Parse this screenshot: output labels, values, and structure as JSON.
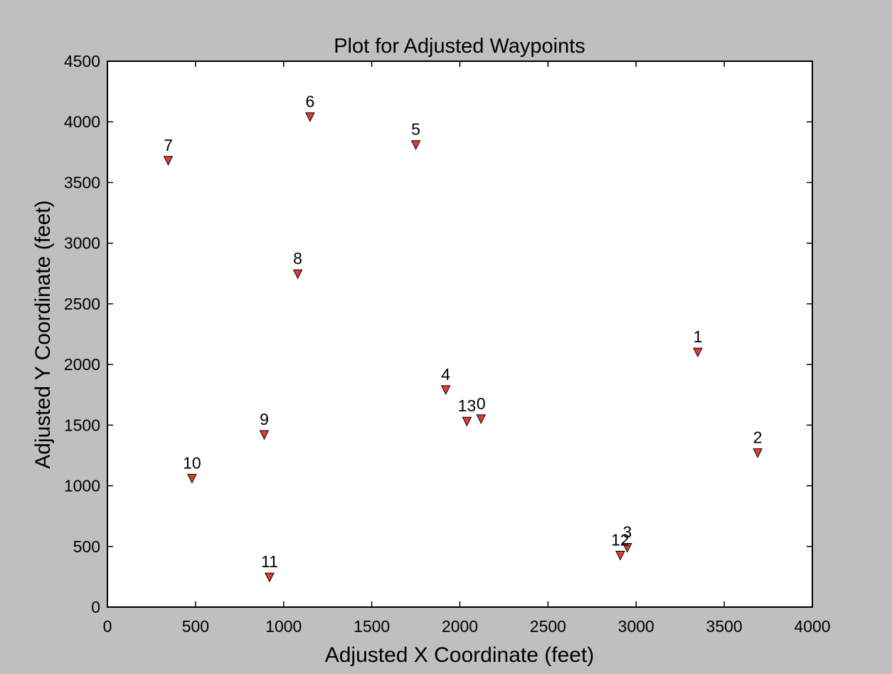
{
  "chart_data": {
    "type": "scatter",
    "title": "Plot for Adjusted Waypoints",
    "xlabel": "Adjusted X Coordinate (feet)",
    "ylabel": "Adjusted Y Coordinate (feet)",
    "xlim": [
      0,
      4000
    ],
    "ylim": [
      0,
      4500
    ],
    "xticks": [
      0,
      500,
      1000,
      1500,
      2000,
      2500,
      3000,
      3500,
      4000
    ],
    "yticks": [
      0,
      500,
      1000,
      1500,
      2000,
      2500,
      3000,
      3500,
      4000,
      4500
    ],
    "grid": false,
    "marker": "triangle-down",
    "marker_color": "#e03c31",
    "points": [
      {
        "label": "0",
        "x": 2120,
        "y": 1550
      },
      {
        "label": "1",
        "x": 3350,
        "y": 2100
      },
      {
        "label": "2",
        "x": 3690,
        "y": 1270
      },
      {
        "label": "3",
        "x": 2950,
        "y": 490
      },
      {
        "label": "4",
        "x": 1920,
        "y": 1790
      },
      {
        "label": "5",
        "x": 1750,
        "y": 3810
      },
      {
        "label": "6",
        "x": 1150,
        "y": 4040
      },
      {
        "label": "7",
        "x": 345,
        "y": 3680
      },
      {
        "label": "8",
        "x": 1080,
        "y": 2745
      },
      {
        "label": "9",
        "x": 890,
        "y": 1420
      },
      {
        "label": "10",
        "x": 480,
        "y": 1060
      },
      {
        "label": "11",
        "x": 920,
        "y": 245
      },
      {
        "label": "12",
        "x": 2910,
        "y": 425
      },
      {
        "label": "13",
        "x": 2040,
        "y": 1530
      }
    ]
  }
}
